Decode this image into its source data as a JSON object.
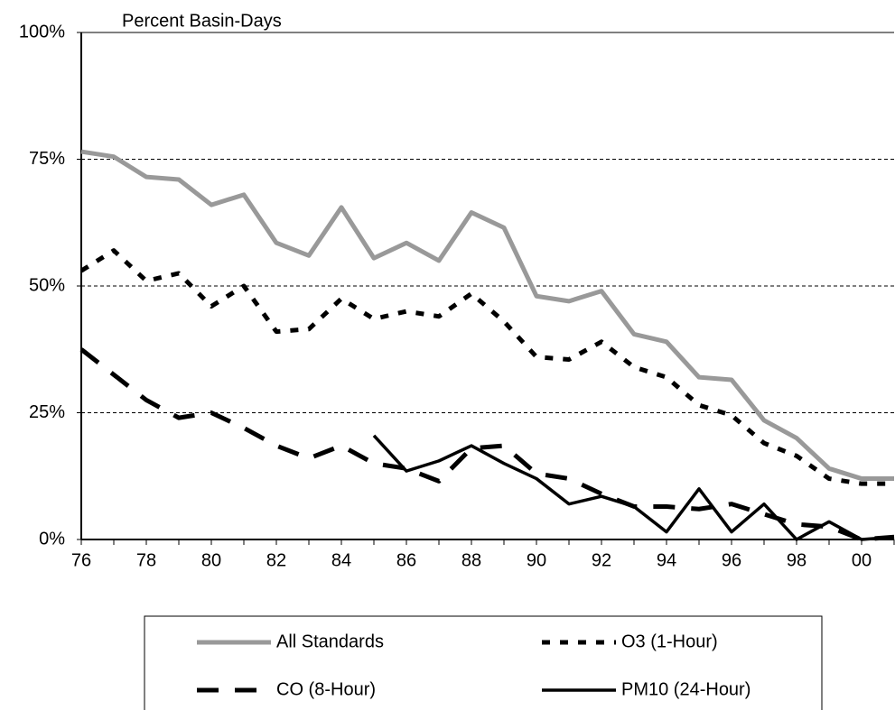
{
  "chart_data": {
    "type": "line",
    "title": "Percent Basin-Days",
    "categories": [
      "76",
      null,
      "78",
      null,
      "80",
      null,
      "82",
      null,
      "84",
      null,
      "86",
      null,
      "88",
      null,
      "90",
      null,
      "92",
      null,
      "94",
      null,
      "96",
      null,
      "98",
      null,
      "00",
      null
    ],
    "ylim": [
      0,
      100
    ],
    "yticks": [
      {
        "value": 0,
        "label": "0%"
      },
      {
        "value": 25,
        "label": "25%"
      },
      {
        "value": 50,
        "label": "50%"
      },
      {
        "value": 75,
        "label": "75%"
      },
      {
        "value": 100,
        "label": "100%"
      }
    ],
    "grid": true,
    "series": [
      {
        "name": "All Standards",
        "color": "#999999",
        "values": [
          76.5,
          75.5,
          71.5,
          71,
          66,
          68,
          58.5,
          56,
          65.5,
          55.5,
          58.5,
          55,
          64.5,
          61.5,
          48,
          47,
          49,
          40.5,
          39,
          32,
          31.5,
          23.5,
          20,
          14,
          12,
          12
        ]
      },
      {
        "name": "O3 (1-Hour)",
        "color": "#000000",
        "values": [
          53,
          57,
          51,
          52.5,
          46,
          50,
          41,
          41.5,
          47.5,
          43.5,
          45,
          44,
          48.5,
          43,
          36,
          35.5,
          39,
          34,
          32,
          26.5,
          24.5,
          19,
          16.5,
          12,
          11,
          11
        ]
      },
      {
        "name": "CO (8-Hour)",
        "color": "#000000",
        "values": [
          37.5,
          32.5,
          27.5,
          24,
          25,
          22,
          18.5,
          16,
          18.5,
          15,
          14,
          11.5,
          18,
          18.5,
          13,
          12,
          9,
          6.5,
          6.5,
          6,
          7,
          5,
          3,
          2.5,
          0,
          0.5
        ]
      },
      {
        "name": "PM10 (24-Hour)",
        "color": "#000000",
        "values": [
          null,
          null,
          null,
          null,
          null,
          null,
          null,
          null,
          null,
          20.5,
          13.5,
          15.5,
          18.5,
          15,
          12,
          7,
          8.5,
          6.5,
          1.5,
          10,
          1.5,
          7,
          0,
          3.5,
          0,
          0.5
        ]
      }
    ]
  }
}
